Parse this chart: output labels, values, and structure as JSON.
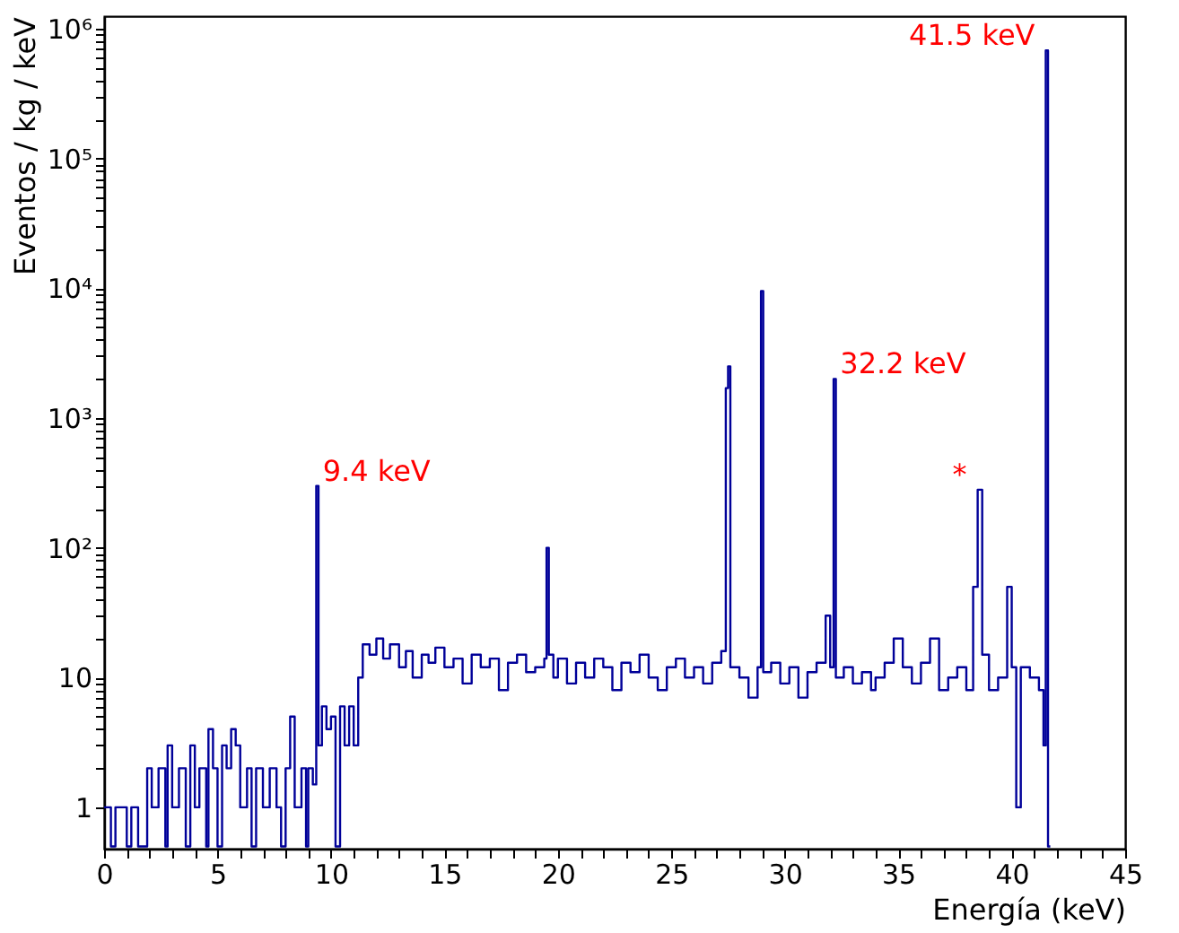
{
  "chart_data": {
    "type": "step",
    "xlabel": "Energía (keV)",
    "ylabel": "Eventos / kg / keV",
    "log": "y",
    "grid": false,
    "marker": "none",
    "line_style": "solid",
    "xlim": [
      0,
      45
    ],
    "ylim": [
      0.48,
      1250000
    ],
    "xticks": [
      0,
      {
        "value": 1,
        "label": null
      },
      {
        "value": 2,
        "label": null
      },
      {
        "value": 3,
        "label": null
      },
      {
        "value": 4,
        "label": null
      },
      5,
      {
        "value": 6,
        "label": null
      },
      {
        "value": 7,
        "label": null
      },
      {
        "value": 8,
        "label": null
      },
      {
        "value": 9,
        "label": null
      },
      10,
      {
        "value": 11,
        "label": null
      },
      {
        "value": 12,
        "label": null
      },
      {
        "value": 13,
        "label": null
      },
      {
        "value": 14,
        "label": null
      },
      15,
      {
        "value": 16,
        "label": null
      },
      {
        "value": 17,
        "label": null
      },
      {
        "value": 18,
        "label": null
      },
      {
        "value": 19,
        "label": null
      },
      20,
      {
        "value": 21,
        "label": null
      },
      {
        "value": 22,
        "label": null
      },
      {
        "value": 23,
        "label": null
      },
      {
        "value": 24,
        "label": null
      },
      25,
      {
        "value": 26,
        "label": null
      },
      {
        "value": 27,
        "label": null
      },
      {
        "value": 28,
        "label": null
      },
      {
        "value": 29,
        "label": null
      },
      30,
      {
        "value": 31,
        "label": null
      },
      {
        "value": 32,
        "label": null
      },
      {
        "value": 33,
        "label": null
      },
      {
        "value": 34,
        "label": null
      },
      35,
      {
        "value": 36,
        "label": null
      },
      {
        "value": 37,
        "label": null
      },
      {
        "value": 38,
        "label": null
      },
      {
        "value": 39,
        "label": null
      },
      40,
      {
        "value": 41,
        "label": null
      },
      {
        "value": 42,
        "label": null
      },
      {
        "value": 43,
        "label": null
      },
      {
        "value": 44,
        "label": null
      },
      45
    ],
    "yticks": [
      1,
      {
        "value": 2,
        "label": null
      },
      {
        "value": 3,
        "label": null
      },
      {
        "value": 4,
        "label": null
      },
      {
        "value": 5,
        "label": null
      },
      {
        "value": 6,
        "label": null
      },
      {
        "value": 7,
        "label": null
      },
      {
        "value": 8,
        "label": null
      },
      {
        "value": 9,
        "label": null
      },
      10,
      {
        "value": 20,
        "label": null
      },
      {
        "value": 30,
        "label": null
      },
      {
        "value": 40,
        "label": null
      },
      {
        "value": 50,
        "label": null
      },
      {
        "value": 60,
        "label": null
      },
      {
        "value": 70,
        "label": null
      },
      {
        "value": 80,
        "label": null
      },
      {
        "value": 90,
        "label": null
      },
      {
        "value": 100,
        "label": "10²"
      },
      {
        "value": 200,
        "label": null
      },
      {
        "value": 300,
        "label": null
      },
      {
        "value": 400,
        "label": null
      },
      {
        "value": 500,
        "label": null
      },
      {
        "value": 600,
        "label": null
      },
      {
        "value": 700,
        "label": null
      },
      {
        "value": 800,
        "label": null
      },
      {
        "value": 900,
        "label": null
      },
      {
        "value": 1000,
        "label": "10³"
      },
      {
        "value": 2000,
        "label": null
      },
      {
        "value": 3000,
        "label": null
      },
      {
        "value": 4000,
        "label": null
      },
      {
        "value": 5000,
        "label": null
      },
      {
        "value": 6000,
        "label": null
      },
      {
        "value": 7000,
        "label": null
      },
      {
        "value": 8000,
        "label": null
      },
      {
        "value": 9000,
        "label": null
      },
      {
        "value": 10000,
        "label": "10⁴"
      },
      {
        "value": 20000,
        "label": null
      },
      {
        "value": 30000,
        "label": null
      },
      {
        "value": 40000,
        "label": null
      },
      {
        "value": 50000,
        "label": null
      },
      {
        "value": 60000,
        "label": null
      },
      {
        "value": 70000,
        "label": null
      },
      {
        "value": 80000,
        "label": null
      },
      {
        "value": 90000,
        "label": null
      },
      {
        "value": 100000,
        "label": "10⁵"
      },
      {
        "value": 200000,
        "label": null
      },
      {
        "value": 300000,
        "label": null
      },
      {
        "value": 400000,
        "label": null
      },
      {
        "value": 500000,
        "label": null
      },
      {
        "value": 600000,
        "label": null
      },
      {
        "value": 700000,
        "label": null
      },
      {
        "value": 800000,
        "label": null
      },
      {
        "value": 900000,
        "label": null
      },
      {
        "value": 1000000,
        "label": "10⁶"
      }
    ],
    "series": [
      {
        "color": "#000099",
        "x": [
          0,
          0.3,
          0.5,
          1,
          1.2,
          1.5,
          1.9,
          2.1,
          2.4,
          2.7,
          2.8,
          3,
          3.3,
          3.6,
          3.8,
          4,
          4.2,
          4.5,
          4.6,
          4.8,
          5,
          5.2,
          5.4,
          5.6,
          5.8,
          6,
          6.3,
          6.5,
          6.7,
          7,
          7.3,
          7.6,
          7.8,
          8,
          8.2,
          8.4,
          8.7,
          8.9,
          9,
          9.2,
          9.35,
          9.45,
          9.6,
          9.8,
          10,
          10.2,
          10.4,
          10.6,
          10.8,
          11,
          11.2,
          11.4,
          11.7,
          12,
          12.3,
          12.6,
          13,
          13.3,
          13.6,
          14,
          14.3,
          14.6,
          15,
          15.4,
          15.8,
          16.2,
          16.6,
          17,
          17.4,
          17.8,
          18.2,
          18.6,
          19,
          19.4,
          19.5,
          19.6,
          19.8,
          20,
          20.4,
          20.8,
          21.2,
          21.6,
          22,
          22.4,
          22.8,
          23.2,
          23.6,
          24,
          24.4,
          24.8,
          25.2,
          25.6,
          26,
          26.4,
          26.8,
          27.2,
          27.4,
          27.5,
          27.6,
          28,
          28.4,
          28.8,
          28.95,
          29.05,
          29.4,
          29.8,
          30.2,
          30.6,
          31,
          31.4,
          31.8,
          32,
          32.15,
          32.25,
          32.6,
          33,
          33.4,
          33.8,
          34,
          34.4,
          34.8,
          35.2,
          35.6,
          36,
          36.4,
          36.8,
          37.2,
          37.6,
          38,
          38.3,
          38.5,
          38.7,
          39,
          39.4,
          39.8,
          40,
          40.2,
          40.4,
          40.8,
          41.2,
          41.4,
          41.5,
          41.6,
          41.7
        ],
        "values": [
          1,
          0.5,
          1,
          0.5,
          1,
          0.5,
          2,
          1,
          2,
          0.5,
          3,
          1,
          2,
          0.5,
          3,
          1,
          2,
          0.5,
          4,
          2,
          0.5,
          3,
          2,
          4,
          3,
          1,
          2,
          0.5,
          2,
          1,
          2,
          1,
          0.5,
          2,
          5,
          1,
          2,
          0.5,
          2,
          1.5,
          300,
          3,
          6,
          4,
          5,
          0.5,
          6,
          3,
          6,
          3,
          10,
          18,
          15,
          20,
          14,
          18,
          12,
          16,
          10,
          15,
          13,
          17,
          12,
          14,
          9,
          15,
          12,
          14,
          8,
          13,
          15,
          11,
          12,
          14,
          100,
          15,
          10,
          14,
          9,
          13,
          10,
          14,
          12,
          8,
          13,
          11,
          15,
          10,
          8,
          12,
          14,
          10,
          12,
          9,
          13,
          16,
          1700,
          2500,
          12,
          10,
          7,
          12,
          9500,
          11,
          13,
          9,
          12,
          7,
          11,
          13,
          30,
          12,
          2000,
          10,
          12,
          9,
          11,
          8,
          10,
          13,
          20,
          12,
          9,
          13,
          20,
          8,
          10,
          12,
          8,
          50,
          280,
          15,
          8,
          10,
          50,
          12,
          1,
          12,
          10,
          8,
          3,
          680000,
          0.5,
          0.5
        ]
      }
    ],
    "annotations": [
      {
        "text": "9.4 keV",
        "x": 9.4,
        "y": 300
      },
      {
        "text": "32.2 keV",
        "x": 32.2,
        "y": 2000
      },
      {
        "text": "*",
        "x": 38.5,
        "y": 280
      },
      {
        "text": "41.5 keV",
        "x": 41.5,
        "y": 680000
      }
    ]
  }
}
